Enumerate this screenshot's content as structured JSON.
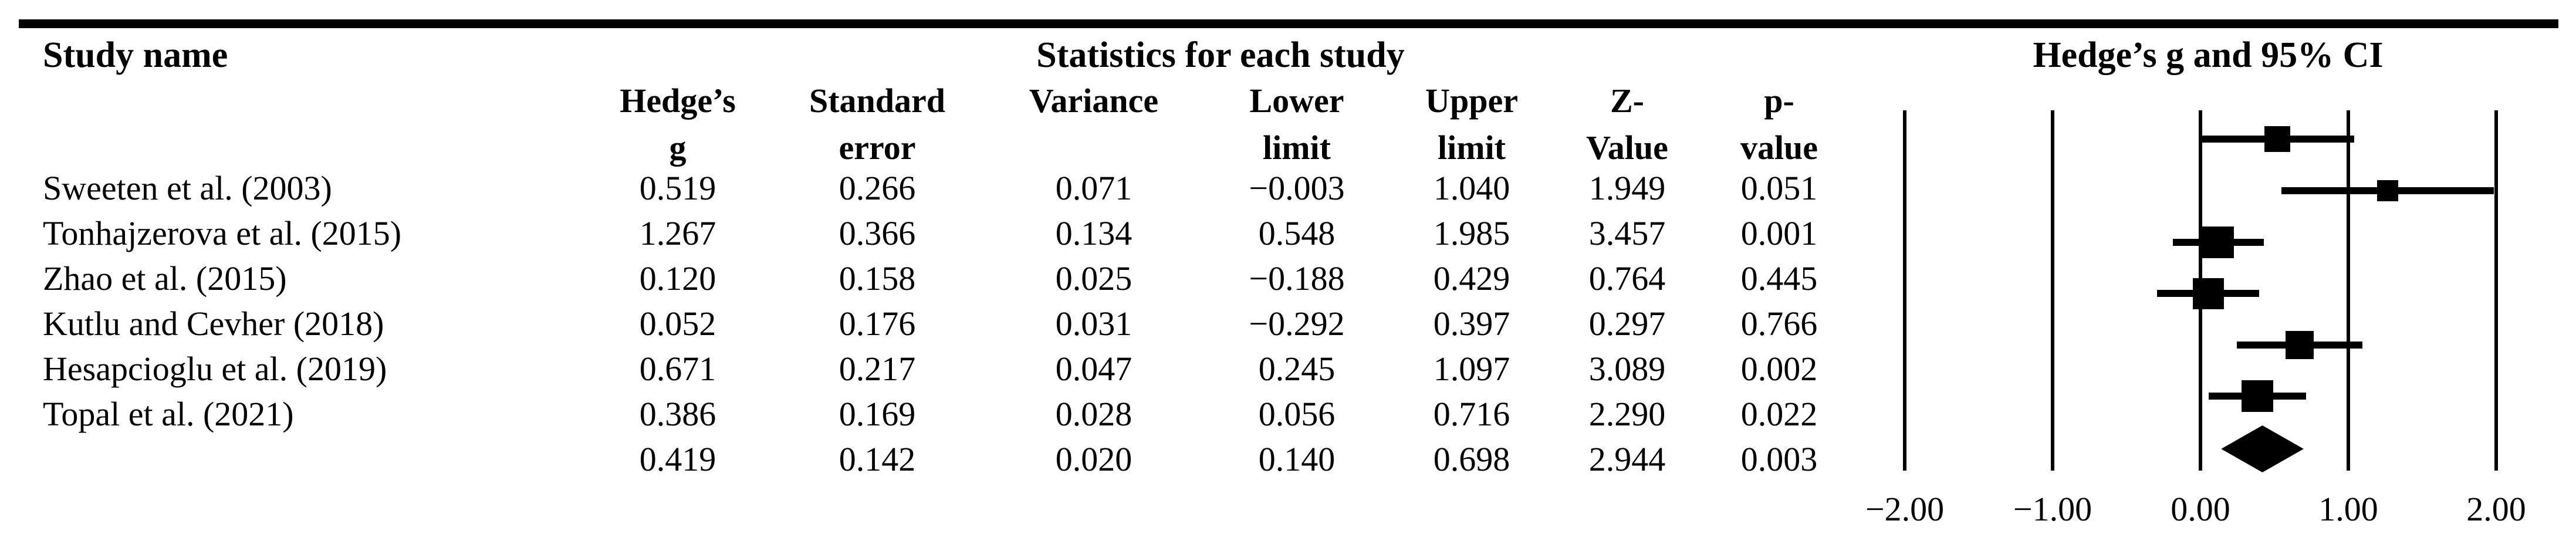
{
  "header": {
    "study_name_title": "Study name",
    "stats_title": "Statistics for each study",
    "plot_title": "Hedge’s g and 95% CI"
  },
  "columns": [
    {
      "line1": "Hedge’s",
      "line2": "g"
    },
    {
      "line1": "Standard",
      "line2": "error"
    },
    {
      "line1": "Variance",
      "line2": ""
    },
    {
      "line1": "Lower",
      "line2": "limit"
    },
    {
      "line1": "Upper",
      "line2": "limit"
    },
    {
      "line1": "Z-",
      "line2": "Value"
    },
    {
      "line1": "p-",
      "line2": "value"
    }
  ],
  "rows": [
    {
      "name": "Sweeten et al. (2003)",
      "values": [
        "0.519",
        "0.266",
        "0.071",
        "−0.003",
        "1.040",
        "1.949",
        "0.051"
      ]
    },
    {
      "name": "Tonhajzerova et al. (2015)",
      "values": [
        "1.267",
        "0.366",
        "0.134",
        "0.548",
        "1.985",
        "3.457",
        "0.001"
      ]
    },
    {
      "name": "Zhao et al. (2015)",
      "values": [
        "0.120",
        "0.158",
        "0.025",
        "−0.188",
        "0.429",
        "0.764",
        "0.445"
      ]
    },
    {
      "name": "Kutlu and Cevher (2018)",
      "values": [
        "0.052",
        "0.176",
        "0.031",
        "−0.292",
        "0.397",
        "0.297",
        "0.766"
      ]
    },
    {
      "name": "Hesapcioglu et al. (2019)",
      "values": [
        "0.671",
        "0.217",
        "0.047",
        "0.245",
        "1.097",
        "3.089",
        "0.002"
      ]
    },
    {
      "name": "Topal et al. (2021)",
      "values": [
        "0.386",
        "0.169",
        "0.028",
        "0.056",
        "0.716",
        "2.290",
        "0.022"
      ]
    }
  ],
  "summary_row": {
    "name": "",
    "values": [
      "0.419",
      "0.142",
      "0.020",
      "0.140",
      "0.698",
      "2.944",
      "0.003"
    ]
  },
  "chart_data": {
    "type": "forest",
    "title": "Hedge’s g and 95% CI",
    "effect_measure": "Hedge’s g",
    "axis": {
      "min": -2,
      "max": 2,
      "ticks": [
        -2,
        -1,
        0,
        1,
        2
      ],
      "tick_labels": [
        "−2.00",
        "−1.00",
        "0.00",
        "1.00",
        "2.00"
      ],
      "gridlines": true
    },
    "studies": [
      {
        "name": "Sweeten et al. (2003)",
        "g": 0.519,
        "se": 0.266,
        "variance": 0.071,
        "lower": -0.003,
        "upper": 1.04,
        "z": 1.949,
        "p": 0.051,
        "marker_px": 44
      },
      {
        "name": "Tonhajzerova et al. (2015)",
        "g": 1.267,
        "se": 0.366,
        "variance": 0.134,
        "lower": 0.548,
        "upper": 1.985,
        "z": 3.457,
        "p": 0.001,
        "marker_px": 36
      },
      {
        "name": "Zhao et al. (2015)",
        "g": 0.12,
        "se": 0.158,
        "variance": 0.025,
        "lower": -0.188,
        "upper": 0.429,
        "z": 0.764,
        "p": 0.445,
        "marker_px": 54
      },
      {
        "name": "Kutlu and Cevher (2018)",
        "g": 0.052,
        "se": 0.176,
        "variance": 0.031,
        "lower": -0.292,
        "upper": 0.397,
        "z": 0.297,
        "p": 0.766,
        "marker_px": 53
      },
      {
        "name": "Hesapcioglu et al. (2019)",
        "g": 0.671,
        "se": 0.217,
        "variance": 0.047,
        "lower": 0.245,
        "upper": 1.097,
        "z": 3.089,
        "p": 0.002,
        "marker_px": 48
      },
      {
        "name": "Topal et al. (2021)",
        "g": 0.386,
        "se": 0.169,
        "variance": 0.028,
        "lower": 0.056,
        "upper": 0.716,
        "z": 2.29,
        "p": 0.022,
        "marker_px": 54
      }
    ],
    "summary": {
      "shape": "diamond",
      "g": 0.419,
      "se": 0.142,
      "variance": 0.02,
      "lower": 0.14,
      "upper": 0.698,
      "z": 2.944,
      "p": 0.003
    }
  },
  "colors": {
    "ink": "#000000",
    "background": "#ffffff"
  }
}
